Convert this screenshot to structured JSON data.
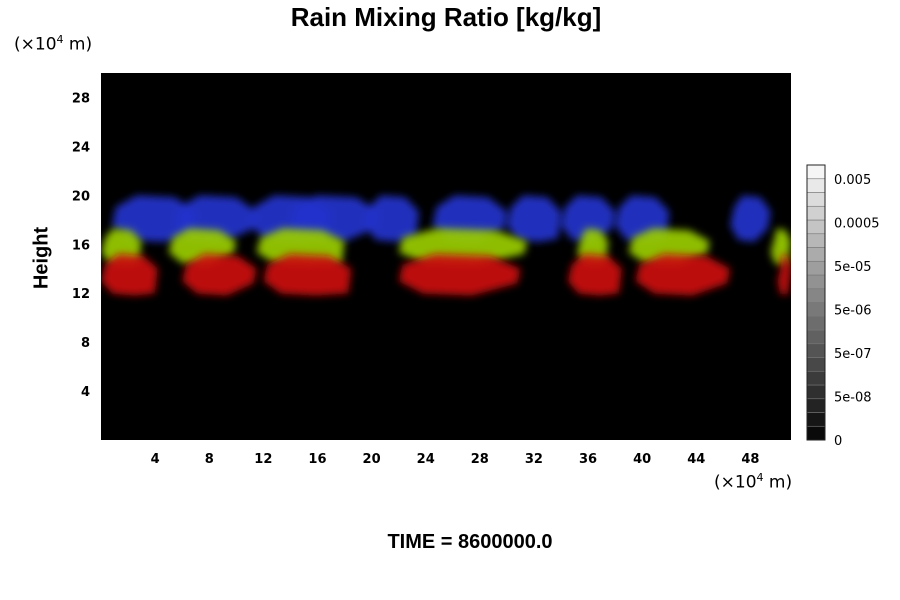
{
  "chart_data": {
    "type": "heatmap",
    "title": "Rain Mixing Ratio [kg/kg]",
    "ylabel": "Height",
    "xunit": "(×10⁴ m)",
    "yunit": "(×10⁴ m)",
    "xlim": [
      0,
      51
    ],
    "ylim": [
      0,
      30
    ],
    "xticks": [
      4,
      8,
      12,
      16,
      20,
      24,
      28,
      32,
      36,
      40,
      44,
      48
    ],
    "yticks": [
      4,
      8,
      12,
      16,
      20,
      24,
      28
    ],
    "colorbar": {
      "labels": [
        "0.005",
        "0.0005",
        "5e-05",
        "5e-06",
        "5e-07",
        "5e-08",
        "0"
      ],
      "levels": 20
    },
    "layers": [
      {
        "color": "#2233cc",
        "y_bottom": 16.2,
        "y_top": 20.0,
        "segments": [
          [
            0.8,
            7.0
          ],
          [
            5.5,
            11.5
          ],
          [
            11.0,
            17.0
          ],
          [
            14.0,
            20.5
          ],
          [
            19.5,
            23.5
          ],
          [
            24.5,
            30.0
          ],
          [
            30.0,
            34.0
          ],
          [
            34.0,
            38.0
          ],
          [
            38.0,
            42.0
          ],
          [
            46.5,
            49.5
          ]
        ]
      },
      {
        "color": "#9acd00",
        "y_bottom": 14.3,
        "y_top": 17.3,
        "segments": [
          [
            0.0,
            3.0
          ],
          [
            5.0,
            10.0
          ],
          [
            11.5,
            18.0
          ],
          [
            22.0,
            31.5
          ],
          [
            35.2,
            37.5
          ],
          [
            39.0,
            45.0
          ],
          [
            49.5,
            51.0
          ]
        ]
      },
      {
        "color": "#cc1010",
        "y_bottom": 11.8,
        "y_top": 15.2,
        "segments": [
          [
            0.0,
            4.2
          ],
          [
            6.0,
            11.5
          ],
          [
            12.0,
            18.5
          ],
          [
            22.0,
            31.0
          ],
          [
            34.5,
            38.5
          ],
          [
            39.5,
            46.5
          ],
          [
            50.0,
            51.0
          ]
        ]
      }
    ],
    "grid": false
  },
  "time_label": "TIME = 8600000.0"
}
